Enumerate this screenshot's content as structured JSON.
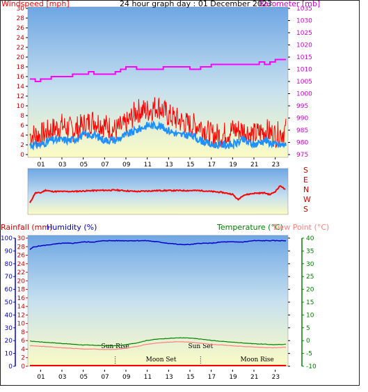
{
  "chart_data": [
    {
      "type": "line",
      "title": "24 hour graph day : 01 December 2023",
      "ylabel_left": "Windspeed [mph]",
      "ylabel_right": "Barometer [mb]",
      "x_ticks": [
        "01",
        "03",
        "05",
        "07",
        "09",
        "11",
        "13",
        "15",
        "17",
        "19",
        "21",
        "23"
      ],
      "ylim_left": [
        0,
        30
      ],
      "ylim_right": [
        975,
        1035
      ],
      "y_ticks_left": [
        0,
        2,
        4,
        6,
        8,
        10,
        12,
        14,
        16,
        18,
        20,
        22,
        24,
        26,
        28,
        30
      ],
      "y_ticks_right": [
        975,
        980,
        985,
        990,
        995,
        1000,
        1005,
        1010,
        1015,
        1020,
        1025,
        1030,
        1035
      ],
      "series": [
        {
          "role": "barometer",
          "color": "#ff00ff",
          "x": [
            0,
            0.5,
            1,
            2,
            3,
            4,
            5,
            5.5,
            6,
            7,
            8,
            8.5,
            9,
            9.5,
            10,
            11,
            12,
            12.5,
            13,
            14,
            15,
            16,
            17,
            18,
            19,
            20,
            21,
            21.5,
            22,
            22.5,
            23,
            23.5,
            24
          ],
          "values": [
            1006,
            1005,
            1006,
            1007,
            1007,
            1008,
            1008,
            1009,
            1008,
            1008,
            1009,
            1010,
            1011,
            1011,
            1010,
            1010,
            1010,
            1011,
            1011,
            1011,
            1010,
            1011,
            1012,
            1012,
            1012,
            1012,
            1012,
            1013,
            1012,
            1013,
            1014,
            1014,
            1014
          ]
        },
        {
          "role": "gust",
          "color": "#ff0000",
          "x": [
            0,
            1,
            2,
            3,
            4,
            5,
            6,
            7,
            8,
            9,
            10,
            11,
            12,
            13,
            14,
            15,
            16,
            17,
            18,
            19,
            20,
            21,
            22,
            23,
            24
          ],
          "values": [
            4,
            4,
            5,
            6,
            5,
            6,
            7,
            6,
            5,
            6,
            9,
            9,
            10,
            8,
            7,
            6,
            6,
            4,
            4,
            5,
            5,
            4,
            5,
            4,
            5
          ]
        },
        {
          "role": "avg",
          "color": "#1e90ff",
          "x": [
            0,
            1,
            2,
            3,
            4,
            5,
            6,
            7,
            8,
            9,
            10,
            11,
            12,
            13,
            14,
            15,
            16,
            17,
            18,
            19,
            20,
            21,
            22,
            23,
            24
          ],
          "values": [
            2,
            2,
            3,
            3,
            3,
            4,
            4,
            3,
            3,
            4,
            5,
            6,
            6,
            5,
            4,
            4,
            3,
            2,
            2,
            2,
            3,
            2,
            3,
            2,
            2
          ]
        }
      ]
    },
    {
      "type": "line",
      "y_ticks_right": [
        "S",
        "E",
        "N",
        "W",
        "S"
      ],
      "series": [
        {
          "role": "direction",
          "color": "#ff0000",
          "x": [
            0,
            0.5,
            1,
            1.5,
            2,
            4,
            6,
            8,
            10,
            12,
            14,
            16,
            18,
            19,
            19.5,
            20,
            21,
            22,
            22.5,
            23,
            23.5,
            24
          ],
          "values": [
            0.25,
            0.47,
            0.47,
            0.53,
            0.5,
            0.5,
            0.52,
            0.53,
            0.5,
            0.52,
            0.52,
            0.52,
            0.48,
            0.44,
            0.32,
            0.42,
            0.46,
            0.47,
            0.43,
            0.5,
            0.63,
            0.52
          ]
        }
      ]
    },
    {
      "type": "line",
      "ylabel_left_1": "Rainfall (mm)",
      "ylabel_left_2": "Humidity (%)",
      "ylabel_right_1": "Temperature (°C)",
      "ylabel_right_2": "Dew Point (°C)",
      "x_ticks": [
        "01",
        "03",
        "05",
        "07",
        "09",
        "11",
        "13",
        "15",
        "17",
        "19",
        "21",
        "23"
      ],
      "ylim_humidity": [
        0,
        100
      ],
      "ylim_rain": [
        0,
        30
      ],
      "ylim_temp": [
        -10,
        40
      ],
      "y_ticks_humidity": [
        0,
        10,
        20,
        30,
        40,
        50,
        60,
        70,
        80,
        90,
        100
      ],
      "y_ticks_rain": [
        0,
        2,
        4,
        6,
        8,
        10,
        12,
        14,
        16,
        18,
        20,
        22,
        24,
        26,
        28,
        30
      ],
      "y_ticks_temp": [
        -10,
        -5,
        0,
        5,
        10,
        15,
        20,
        25,
        30,
        35,
        40
      ],
      "events": [
        {
          "label": "Sun Rise",
          "x": 8.0,
          "row": "upper"
        },
        {
          "label": "Moon Set",
          "x": 12.3,
          "row": "lower"
        },
        {
          "label": "Sun Set",
          "x": 16.0,
          "row": "upper"
        },
        {
          "label": "Moon Rise",
          "x": 21.3,
          "row": "lower"
        }
      ],
      "series": [
        {
          "role": "humidity",
          "color": "#0000cd",
          "x": [
            0,
            0.3,
            1,
            2,
            3,
            4,
            5,
            6,
            7,
            8,
            9,
            10,
            11,
            12,
            13,
            14,
            15,
            16,
            17,
            18,
            19,
            20,
            21,
            22,
            23,
            24
          ],
          "values": [
            91,
            93,
            94,
            95,
            96,
            96,
            97,
            97,
            98,
            98,
            98,
            98,
            98,
            97,
            96,
            95,
            95,
            96,
            96,
            97,
            97,
            97,
            98,
            98,
            98,
            98
          ]
        },
        {
          "role": "temperature",
          "color": "#008000",
          "x": [
            0,
            1,
            2,
            3,
            4,
            5,
            6,
            7,
            8,
            9,
            10,
            11,
            12,
            13,
            14,
            15,
            16,
            17,
            18,
            19,
            20,
            21,
            22,
            23,
            24
          ],
          "values": [
            -0.2,
            -0.5,
            -0.8,
            -1.1,
            -1.4,
            -1.7,
            -1.8,
            -2.0,
            -2.0,
            -1.6,
            -0.9,
            0.1,
            0.6,
            0.9,
            1.1,
            1.0,
            0.6,
            0.1,
            -0.3,
            -0.6,
            -0.9,
            -1.2,
            -1.4,
            -1.6,
            -1.4
          ]
        },
        {
          "role": "dewpoint",
          "color": "#ff8080",
          "x": [
            0,
            1,
            2,
            3,
            4,
            5,
            6,
            7,
            8,
            9,
            10,
            11,
            12,
            13,
            14,
            15,
            16,
            17,
            18,
            19,
            20,
            21,
            22,
            23,
            24
          ],
          "values": [
            -2.0,
            -2.2,
            -2.5,
            -2.8,
            -3.0,
            -3.3,
            -3.3,
            -3.5,
            -3.4,
            -3.0,
            -2.3,
            -1.4,
            -0.9,
            -0.6,
            -0.4,
            -0.6,
            -1.0,
            -1.4,
            -1.7,
            -2.0,
            -2.3,
            -2.5,
            -2.7,
            -2.8,
            -2.6
          ]
        },
        {
          "role": "rain",
          "color": "#ff0000",
          "x": [
            0,
            24
          ],
          "values": [
            0,
            0
          ]
        }
      ]
    }
  ]
}
